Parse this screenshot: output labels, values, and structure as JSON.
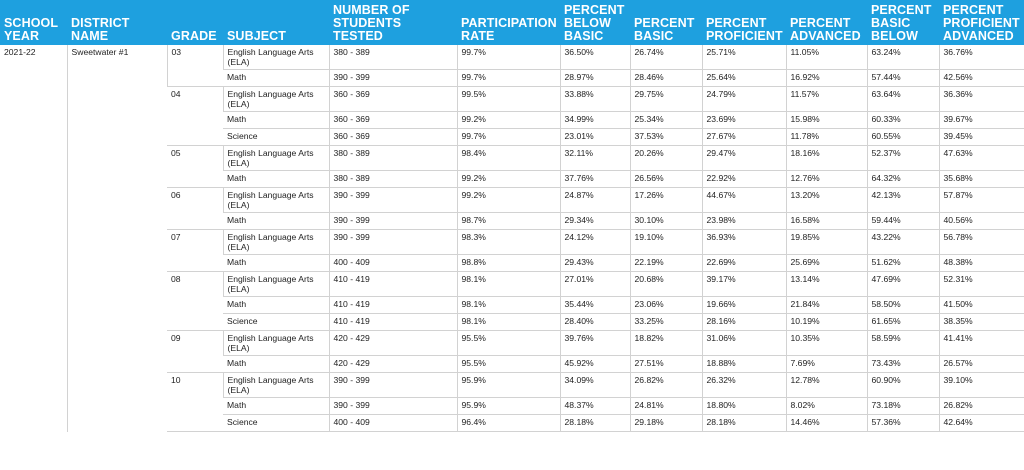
{
  "headers": [
    "SCHOOL YEAR",
    "DISTRICT NAME",
    "GRADE",
    "SUBJECT",
    "NUMBER OF STUDENTS TESTED",
    "PARTICIPATION RATE",
    "PERCENT BELOW BASIC",
    "PERCENT BASIC",
    "PERCENT PROFICIENT",
    "PERCENT ADVANCED",
    "PERCENT BASIC BELOW",
    "PERCENT PROFICIENT ADVANCED"
  ],
  "school_year": "2021-22",
  "district_name": "Sweetwater #1",
  "grades": [
    {
      "grade": "03",
      "rows": [
        {
          "subject": "English Language Arts (ELA)",
          "tested": "380 - 389",
          "participation": "99.7%",
          "below_basic": "36.50%",
          "basic": "26.74%",
          "proficient": "25.71%",
          "advanced": "11.05%",
          "basic_below": "63.24%",
          "proficient_advanced": "36.76%"
        },
        {
          "subject": "Math",
          "tested": "390 - 399",
          "participation": "99.7%",
          "below_basic": "28.97%",
          "basic": "28.46%",
          "proficient": "25.64%",
          "advanced": "16.92%",
          "basic_below": "57.44%",
          "proficient_advanced": "42.56%"
        }
      ]
    },
    {
      "grade": "04",
      "rows": [
        {
          "subject": "English Language Arts (ELA)",
          "tested": "360 - 369",
          "participation": "99.5%",
          "below_basic": "33.88%",
          "basic": "29.75%",
          "proficient": "24.79%",
          "advanced": "11.57%",
          "basic_below": "63.64%",
          "proficient_advanced": "36.36%"
        },
        {
          "subject": "Math",
          "tested": "360 - 369",
          "participation": "99.2%",
          "below_basic": "34.99%",
          "basic": "25.34%",
          "proficient": "23.69%",
          "advanced": "15.98%",
          "basic_below": "60.33%",
          "proficient_advanced": "39.67%"
        },
        {
          "subject": "Science",
          "tested": "360 - 369",
          "participation": "99.7%",
          "below_basic": "23.01%",
          "basic": "37.53%",
          "proficient": "27.67%",
          "advanced": "11.78%",
          "basic_below": "60.55%",
          "proficient_advanced": "39.45%"
        }
      ]
    },
    {
      "grade": "05",
      "rows": [
        {
          "subject": "English Language Arts (ELA)",
          "tested": "380 - 389",
          "participation": "98.4%",
          "below_basic": "32.11%",
          "basic": "20.26%",
          "proficient": "29.47%",
          "advanced": "18.16%",
          "basic_below": "52.37%",
          "proficient_advanced": "47.63%"
        },
        {
          "subject": "Math",
          "tested": "380 - 389",
          "participation": "99.2%",
          "below_basic": "37.76%",
          "basic": "26.56%",
          "proficient": "22.92%",
          "advanced": "12.76%",
          "basic_below": "64.32%",
          "proficient_advanced": "35.68%"
        }
      ]
    },
    {
      "grade": "06",
      "rows": [
        {
          "subject": "English Language Arts (ELA)",
          "tested": "390 - 399",
          "participation": "99.2%",
          "below_basic": "24.87%",
          "basic": "17.26%",
          "proficient": "44.67%",
          "advanced": "13.20%",
          "basic_below": "42.13%",
          "proficient_advanced": "57.87%"
        },
        {
          "subject": "Math",
          "tested": "390 - 399",
          "participation": "98.7%",
          "below_basic": "29.34%",
          "basic": "30.10%",
          "proficient": "23.98%",
          "advanced": "16.58%",
          "basic_below": "59.44%",
          "proficient_advanced": "40.56%"
        }
      ]
    },
    {
      "grade": "07",
      "rows": [
        {
          "subject": "English Language Arts (ELA)",
          "tested": "390 - 399",
          "participation": "98.3%",
          "below_basic": "24.12%",
          "basic": "19.10%",
          "proficient": "36.93%",
          "advanced": "19.85%",
          "basic_below": "43.22%",
          "proficient_advanced": "56.78%"
        },
        {
          "subject": "Math",
          "tested": "400 - 409",
          "participation": "98.8%",
          "below_basic": "29.43%",
          "basic": "22.19%",
          "proficient": "22.69%",
          "advanced": "25.69%",
          "basic_below": "51.62%",
          "proficient_advanced": "48.38%"
        }
      ]
    },
    {
      "grade": "08",
      "rows": [
        {
          "subject": "English Language Arts (ELA)",
          "tested": "410 - 419",
          "participation": "98.1%",
          "below_basic": "27.01%",
          "basic": "20.68%",
          "proficient": "39.17%",
          "advanced": "13.14%",
          "basic_below": "47.69%",
          "proficient_advanced": "52.31%"
        },
        {
          "subject": "Math",
          "tested": "410 - 419",
          "participation": "98.1%",
          "below_basic": "35.44%",
          "basic": "23.06%",
          "proficient": "19.66%",
          "advanced": "21.84%",
          "basic_below": "58.50%",
          "proficient_advanced": "41.50%"
        },
        {
          "subject": "Science",
          "tested": "410 - 419",
          "participation": "98.1%",
          "below_basic": "28.40%",
          "basic": "33.25%",
          "proficient": "28.16%",
          "advanced": "10.19%",
          "basic_below": "61.65%",
          "proficient_advanced": "38.35%"
        }
      ]
    },
    {
      "grade": "09",
      "rows": [
        {
          "subject": "English Language Arts (ELA)",
          "tested": "420 - 429",
          "participation": "95.5%",
          "below_basic": "39.76%",
          "basic": "18.82%",
          "proficient": "31.06%",
          "advanced": "10.35%",
          "basic_below": "58.59%",
          "proficient_advanced": "41.41%"
        },
        {
          "subject": "Math",
          "tested": "420 - 429",
          "participation": "95.5%",
          "below_basic": "45.92%",
          "basic": "27.51%",
          "proficient": "18.88%",
          "advanced": "7.69%",
          "basic_below": "73.43%",
          "proficient_advanced": "26.57%"
        }
      ]
    },
    {
      "grade": "10",
      "rows": [
        {
          "subject": "English Language Arts (ELA)",
          "tested": "390 - 399",
          "participation": "95.9%",
          "below_basic": "34.09%",
          "basic": "26.82%",
          "proficient": "26.32%",
          "advanced": "12.78%",
          "basic_below": "60.90%",
          "proficient_advanced": "39.10%"
        },
        {
          "subject": "Math",
          "tested": "390 - 399",
          "participation": "95.9%",
          "below_basic": "48.37%",
          "basic": "24.81%",
          "proficient": "18.80%",
          "advanced": "8.02%",
          "basic_below": "73.18%",
          "proficient_advanced": "26.82%"
        },
        {
          "subject": "Science",
          "tested": "400 - 409",
          "participation": "96.4%",
          "below_basic": "28.18%",
          "basic": "29.18%",
          "proficient": "28.18%",
          "advanced": "14.46%",
          "basic_below": "57.36%",
          "proficient_advanced": "42.64%"
        }
      ]
    }
  ]
}
